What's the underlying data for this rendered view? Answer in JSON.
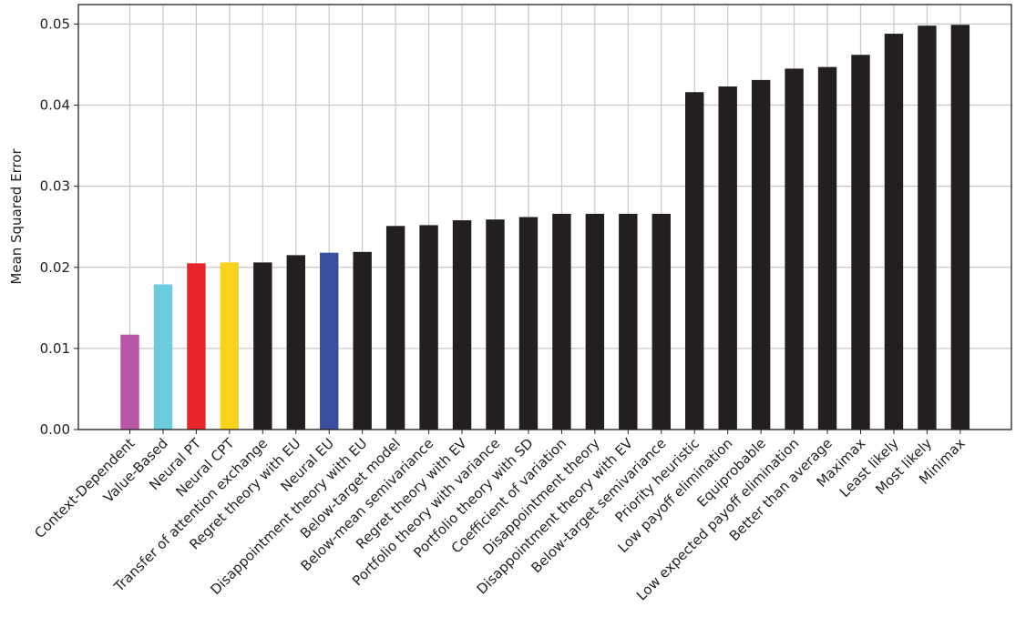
{
  "chart_data": {
    "type": "bar",
    "y_label": "Mean Squared Error",
    "categories": [
      "Context-Dependent",
      "Value-Based",
      "Neural PT",
      "Neural CPT",
      "Transfer of attention exchange",
      "Regret theory with EU",
      "Neural EU",
      "Disappointment theory with EU",
      "Below-target model",
      "Below-mean semivariance",
      "Regret theory with EV",
      "Portfolio theory with variance",
      "Portfolio theory with SD",
      "Coefficient of variation",
      "Disappointment theory",
      "Disappointment theory with EV",
      "Below-target semivariance",
      "Priority heuristic",
      "Low payoff elimination",
      "Equiprobable",
      "Low expected payoff elimination",
      "Better than average",
      "Maximax",
      "Least likely",
      "Most likely",
      "Minimax"
    ],
    "values": [
      0.0117,
      0.0179,
      0.0205,
      0.0206,
      0.0206,
      0.0215,
      0.0218,
      0.0219,
      0.0251,
      0.0252,
      0.0258,
      0.0259,
      0.0262,
      0.0266,
      0.0266,
      0.0266,
      0.0266,
      0.0416,
      0.0423,
      0.0431,
      0.0445,
      0.0447,
      0.0462,
      0.0488,
      0.0498,
      0.0499
    ],
    "colors": [
      "#b956a8",
      "#6ccbdc",
      "#e8262a",
      "#f8d21c",
      "#231f20",
      "#231f20",
      "#3a4fa0",
      "#231f20",
      "#231f20",
      "#231f20",
      "#231f20",
      "#231f20",
      "#231f20",
      "#231f20",
      "#231f20",
      "#231f20",
      "#231f20",
      "#231f20",
      "#231f20",
      "#231f20",
      "#231f20",
      "#231f20",
      "#231f20",
      "#231f20",
      "#231f20",
      "#231f20"
    ],
    "ylim": [
      0,
      0.0524
    ],
    "yticks": [
      {
        "value": 0,
        "label": "0.00"
      },
      0.01,
      0.02,
      0.03,
      0.04,
      0.05
    ],
    "grid": true
  }
}
